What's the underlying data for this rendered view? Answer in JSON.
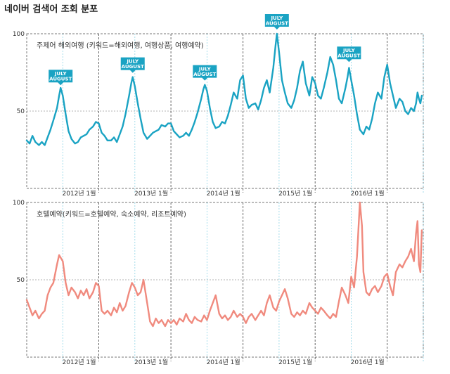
{
  "title": "네이버 검색어 조회 분포",
  "chart_data": [
    {
      "type": "line",
      "title": "주제어 해외여행 (키워드=해외여행, 여행상품, 여행예약)",
      "color": "#1aa3c3",
      "ylim": [
        0,
        100
      ],
      "y_ticks": [
        100,
        50
      ],
      "x_range": [
        2011.0,
        2016.5
      ],
      "x_ticks": [
        {
          "x": 2012.0,
          "label": "2012년 1월"
        },
        {
          "x": 2013.0,
          "label": "2013년 1월"
        },
        {
          "x": 2014.0,
          "label": "2014년 1월"
        },
        {
          "x": 2015.0,
          "label": "2015년 1월"
        },
        {
          "x": 2016.0,
          "label": "2016년 1월"
        }
      ],
      "badge_text": [
        "JULY",
        "AUGUST"
      ],
      "badges": [
        {
          "x": 2011.47,
          "y": 64
        },
        {
          "x": 2012.47,
          "y": 72
        },
        {
          "x": 2013.47,
          "y": 67
        },
        {
          "x": 2014.47,
          "y": 100
        },
        {
          "x": 2015.47,
          "y": 79
        }
      ],
      "points": [
        [
          2011.0,
          31
        ],
        [
          2011.04,
          29
        ],
        [
          2011.08,
          34
        ],
        [
          2011.12,
          30
        ],
        [
          2011.17,
          28
        ],
        [
          2011.21,
          30
        ],
        [
          2011.25,
          28
        ],
        [
          2011.29,
          33
        ],
        [
          2011.33,
          38
        ],
        [
          2011.37,
          44
        ],
        [
          2011.42,
          52
        ],
        [
          2011.45,
          60
        ],
        [
          2011.47,
          65
        ],
        [
          2011.5,
          60
        ],
        [
          2011.54,
          48
        ],
        [
          2011.58,
          37
        ],
        [
          2011.62,
          32
        ],
        [
          2011.67,
          29
        ],
        [
          2011.71,
          30
        ],
        [
          2011.75,
          33
        ],
        [
          2011.79,
          34
        ],
        [
          2011.83,
          35
        ],
        [
          2011.87,
          38
        ],
        [
          2011.92,
          40
        ],
        [
          2011.96,
          43
        ],
        [
          2012.0,
          42
        ],
        [
          2012.04,
          36
        ],
        [
          2012.08,
          34
        ],
        [
          2012.12,
          31
        ],
        [
          2012.17,
          31
        ],
        [
          2012.21,
          33
        ],
        [
          2012.25,
          30
        ],
        [
          2012.29,
          35
        ],
        [
          2012.33,
          40
        ],
        [
          2012.37,
          48
        ],
        [
          2012.42,
          60
        ],
        [
          2012.45,
          68
        ],
        [
          2012.47,
          72
        ],
        [
          2012.5,
          66
        ],
        [
          2012.54,
          55
        ],
        [
          2012.58,
          45
        ],
        [
          2012.62,
          36
        ],
        [
          2012.67,
          32
        ],
        [
          2012.71,
          34
        ],
        [
          2012.75,
          36
        ],
        [
          2012.79,
          37
        ],
        [
          2012.83,
          38
        ],
        [
          2012.87,
          41
        ],
        [
          2012.92,
          40
        ],
        [
          2012.96,
          42
        ],
        [
          2013.0,
          42
        ],
        [
          2013.04,
          37
        ],
        [
          2013.08,
          35
        ],
        [
          2013.12,
          33
        ],
        [
          2013.17,
          34
        ],
        [
          2013.21,
          36
        ],
        [
          2013.25,
          34
        ],
        [
          2013.29,
          38
        ],
        [
          2013.33,
          43
        ],
        [
          2013.37,
          49
        ],
        [
          2013.42,
          58
        ],
        [
          2013.45,
          64
        ],
        [
          2013.47,
          67
        ],
        [
          2013.5,
          63
        ],
        [
          2013.54,
          52
        ],
        [
          2013.58,
          43
        ],
        [
          2013.62,
          39
        ],
        [
          2013.67,
          40
        ],
        [
          2013.71,
          43
        ],
        [
          2013.75,
          42
        ],
        [
          2013.79,
          47
        ],
        [
          2013.83,
          54
        ],
        [
          2013.87,
          62
        ],
        [
          2013.92,
          58
        ],
        [
          2013.96,
          70
        ],
        [
          2014.0,
          73
        ],
        [
          2014.04,
          58
        ],
        [
          2014.08,
          52
        ],
        [
          2014.12,
          54
        ],
        [
          2014.17,
          55
        ],
        [
          2014.21,
          51
        ],
        [
          2014.25,
          57
        ],
        [
          2014.29,
          65
        ],
        [
          2014.33,
          70
        ],
        [
          2014.37,
          62
        ],
        [
          2014.42,
          78
        ],
        [
          2014.45,
          92
        ],
        [
          2014.47,
          100
        ],
        [
          2014.5,
          88
        ],
        [
          2014.54,
          70
        ],
        [
          2014.58,
          62
        ],
        [
          2014.62,
          55
        ],
        [
          2014.67,
          52
        ],
        [
          2014.71,
          57
        ],
        [
          2014.75,
          65
        ],
        [
          2014.79,
          76
        ],
        [
          2014.83,
          82
        ],
        [
          2014.87,
          68
        ],
        [
          2014.92,
          60
        ],
        [
          2014.96,
          72
        ],
        [
          2015.0,
          68
        ],
        [
          2015.04,
          60
        ],
        [
          2015.08,
          58
        ],
        [
          2015.12,
          65
        ],
        [
          2015.17,
          75
        ],
        [
          2015.21,
          85
        ],
        [
          2015.25,
          80
        ],
        [
          2015.29,
          70
        ],
        [
          2015.33,
          58
        ],
        [
          2015.37,
          55
        ],
        [
          2015.42,
          65
        ],
        [
          2015.45,
          72
        ],
        [
          2015.47,
          78
        ],
        [
          2015.5,
          70
        ],
        [
          2015.54,
          60
        ],
        [
          2015.58,
          48
        ],
        [
          2015.62,
          38
        ],
        [
          2015.67,
          35
        ],
        [
          2015.71,
          40
        ],
        [
          2015.75,
          38
        ],
        [
          2015.79,
          45
        ],
        [
          2015.83,
          55
        ],
        [
          2015.87,
          62
        ],
        [
          2015.92,
          58
        ],
        [
          2015.96,
          72
        ],
        [
          2016.0,
          80
        ],
        [
          2016.04,
          68
        ],
        [
          2016.08,
          60
        ],
        [
          2016.12,
          52
        ],
        [
          2016.17,
          58
        ],
        [
          2016.21,
          56
        ],
        [
          2016.25,
          50
        ],
        [
          2016.29,
          48
        ],
        [
          2016.33,
          52
        ],
        [
          2016.37,
          50
        ],
        [
          2016.4,
          55
        ],
        [
          2016.42,
          62
        ],
        [
          2016.44,
          58
        ],
        [
          2016.46,
          55
        ],
        [
          2016.48,
          60
        ]
      ]
    },
    {
      "type": "line",
      "title": "호텔예약(키워드=호텔예약, 숙소예약, 리조트예약)",
      "color": "#f08a7e",
      "ylim": [
        0,
        100
      ],
      "y_ticks": [
        100,
        50
      ],
      "x_range": [
        2011.0,
        2016.5
      ],
      "x_ticks": [
        {
          "x": 2012.0,
          "label": "2012년 1월"
        },
        {
          "x": 2013.0,
          "label": "2013년 1월"
        },
        {
          "x": 2014.0,
          "label": "2014년 1월"
        },
        {
          "x": 2015.0,
          "label": "2015년 1월"
        },
        {
          "x": 2016.0,
          "label": "2016년 1월"
        }
      ],
      "points": [
        [
          2011.0,
          37
        ],
        [
          2011.04,
          32
        ],
        [
          2011.08,
          27
        ],
        [
          2011.12,
          30
        ],
        [
          2011.17,
          25
        ],
        [
          2011.21,
          28
        ],
        [
          2011.25,
          30
        ],
        [
          2011.29,
          40
        ],
        [
          2011.33,
          45
        ],
        [
          2011.37,
          48
        ],
        [
          2011.42,
          60
        ],
        [
          2011.45,
          66
        ],
        [
          2011.5,
          62
        ],
        [
          2011.54,
          48
        ],
        [
          2011.58,
          40
        ],
        [
          2011.62,
          45
        ],
        [
          2011.67,
          42
        ],
        [
          2011.71,
          38
        ],
        [
          2011.75,
          43
        ],
        [
          2011.79,
          40
        ],
        [
          2011.83,
          44
        ],
        [
          2011.87,
          38
        ],
        [
          2011.92,
          42
        ],
        [
          2011.96,
          48
        ],
        [
          2012.0,
          46
        ],
        [
          2012.04,
          30
        ],
        [
          2012.08,
          28
        ],
        [
          2012.12,
          30
        ],
        [
          2012.17,
          27
        ],
        [
          2012.21,
          32
        ],
        [
          2012.25,
          29
        ],
        [
          2012.29,
          35
        ],
        [
          2012.33,
          30
        ],
        [
          2012.37,
          33
        ],
        [
          2012.42,
          42
        ],
        [
          2012.46,
          48
        ],
        [
          2012.5,
          45
        ],
        [
          2012.54,
          40
        ],
        [
          2012.58,
          42
        ],
        [
          2012.62,
          50
        ],
        [
          2012.67,
          35
        ],
        [
          2012.71,
          23
        ],
        [
          2012.75,
          20
        ],
        [
          2012.79,
          25
        ],
        [
          2012.83,
          22
        ],
        [
          2012.87,
          24
        ],
        [
          2012.92,
          20
        ],
        [
          2012.96,
          24
        ],
        [
          2013.0,
          22
        ],
        [
          2013.04,
          24
        ],
        [
          2013.08,
          21
        ],
        [
          2013.12,
          25
        ],
        [
          2013.17,
          23
        ],
        [
          2013.21,
          28
        ],
        [
          2013.25,
          24
        ],
        [
          2013.29,
          22
        ],
        [
          2013.33,
          26
        ],
        [
          2013.37,
          24
        ],
        [
          2013.42,
          23
        ],
        [
          2013.46,
          27
        ],
        [
          2013.5,
          24
        ],
        [
          2013.54,
          30
        ],
        [
          2013.58,
          35
        ],
        [
          2013.62,
          40
        ],
        [
          2013.67,
          28
        ],
        [
          2013.71,
          25
        ],
        [
          2013.75,
          27
        ],
        [
          2013.79,
          24
        ],
        [
          2013.83,
          26
        ],
        [
          2013.87,
          30
        ],
        [
          2013.92,
          26
        ],
        [
          2013.96,
          28
        ],
        [
          2014.0,
          26
        ],
        [
          2014.04,
          22
        ],
        [
          2014.08,
          26
        ],
        [
          2014.12,
          28
        ],
        [
          2014.17,
          24
        ],
        [
          2014.21,
          27
        ],
        [
          2014.25,
          30
        ],
        [
          2014.29,
          27
        ],
        [
          2014.33,
          35
        ],
        [
          2014.37,
          40
        ],
        [
          2014.42,
          32
        ],
        [
          2014.46,
          30
        ],
        [
          2014.5,
          36
        ],
        [
          2014.54,
          40
        ],
        [
          2014.58,
          44
        ],
        [
          2014.62,
          38
        ],
        [
          2014.67,
          28
        ],
        [
          2014.71,
          26
        ],
        [
          2014.75,
          29
        ],
        [
          2014.79,
          27
        ],
        [
          2014.83,
          30
        ],
        [
          2014.87,
          28
        ],
        [
          2014.92,
          35
        ],
        [
          2014.96,
          32
        ],
        [
          2015.0,
          30
        ],
        [
          2015.04,
          28
        ],
        [
          2015.08,
          32
        ],
        [
          2015.12,
          30
        ],
        [
          2015.17,
          27
        ],
        [
          2015.21,
          25
        ],
        [
          2015.25,
          28
        ],
        [
          2015.29,
          26
        ],
        [
          2015.33,
          36
        ],
        [
          2015.37,
          45
        ],
        [
          2015.42,
          40
        ],
        [
          2015.46,
          35
        ],
        [
          2015.5,
          52
        ],
        [
          2015.54,
          45
        ],
        [
          2015.58,
          65
        ],
        [
          2015.62,
          100
        ],
        [
          2015.65,
          85
        ],
        [
          2015.67,
          55
        ],
        [
          2015.71,
          42
        ],
        [
          2015.75,
          40
        ],
        [
          2015.79,
          44
        ],
        [
          2015.83,
          46
        ],
        [
          2015.87,
          42
        ],
        [
          2015.92,
          46
        ],
        [
          2015.96,
          52
        ],
        [
          2016.0,
          54
        ],
        [
          2016.04,
          46
        ],
        [
          2016.08,
          40
        ],
        [
          2016.12,
          55
        ],
        [
          2016.17,
          60
        ],
        [
          2016.21,
          58
        ],
        [
          2016.25,
          62
        ],
        [
          2016.29,
          65
        ],
        [
          2016.33,
          70
        ],
        [
          2016.37,
          62
        ],
        [
          2016.4,
          80
        ],
        [
          2016.42,
          88
        ],
        [
          2016.44,
          60
        ],
        [
          2016.46,
          55
        ],
        [
          2016.48,
          82
        ]
      ]
    }
  ]
}
